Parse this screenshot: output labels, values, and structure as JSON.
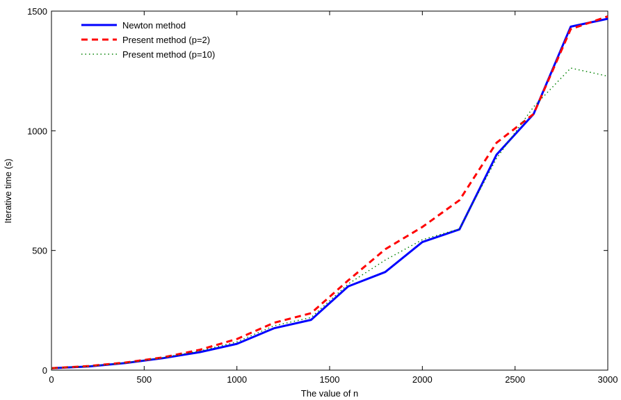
{
  "chart_data": {
    "type": "line",
    "title": "",
    "xlabel": "The value of n",
    "ylabel": "Iterative time (s)",
    "xlim": [
      0,
      3000
    ],
    "ylim": [
      0,
      1500
    ],
    "xticks": [
      0,
      500,
      1000,
      1500,
      2000,
      2500,
      3000
    ],
    "yticks": [
      0,
      500,
      1000,
      1500
    ],
    "grid": false,
    "legend_position": "top-left",
    "x": [
      0,
      200,
      400,
      600,
      800,
      1000,
      1200,
      1400,
      1600,
      1800,
      2000,
      2200,
      2400,
      2600,
      2800,
      3000
    ],
    "series": [
      {
        "name": "Newton method",
        "color": "#0000ff",
        "style": "solid",
        "values": [
          8,
          15,
          30,
          50,
          75,
          110,
          175,
          210,
          350,
          410,
          535,
          588,
          900,
          1070,
          1435,
          1468
        ]
      },
      {
        "name": "Present method (p=2)",
        "color": "#ff0000",
        "style": "dashed",
        "values": [
          8,
          17,
          32,
          53,
          85,
          130,
          198,
          238,
          375,
          505,
          598,
          710,
          950,
          1070,
          1425,
          1478
        ]
      },
      {
        "name": "Present method (p=10)",
        "color": "#008000",
        "style": "dotted",
        "values": [
          8,
          16,
          30,
          52,
          80,
          118,
          185,
          220,
          360,
          460,
          545,
          590,
          885,
          1100,
          1262,
          1228
        ]
      }
    ]
  }
}
